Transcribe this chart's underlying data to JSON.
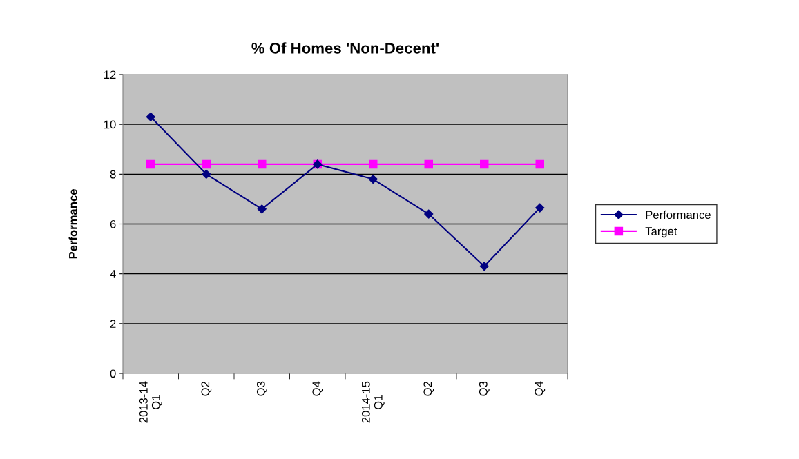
{
  "chart_data": {
    "type": "line",
    "title": "% Of Homes 'Non-Decent'",
    "ylabel": "Performance",
    "categories": [
      "2013-14\nQ1",
      "Q2",
      "Q3",
      "Q4",
      "2014-15\nQ1",
      "Q2",
      "Q3",
      "Q4"
    ],
    "series": [
      {
        "name": "Performance",
        "color": "#000080",
        "marker": "diamond",
        "values": [
          10.3,
          8.0,
          6.6,
          8.4,
          7.8,
          6.4,
          4.3,
          6.65
        ]
      },
      {
        "name": "Target",
        "color": "#ff00ff",
        "marker": "square",
        "values": [
          8.4,
          8.4,
          8.4,
          8.4,
          8.4,
          8.4,
          8.4,
          8.4
        ]
      }
    ],
    "ylim": [
      0,
      12
    ],
    "yticks": [
      0,
      2,
      4,
      6,
      8,
      10,
      12
    ],
    "grid": "y",
    "legend": "right",
    "line_style": "solid"
  }
}
